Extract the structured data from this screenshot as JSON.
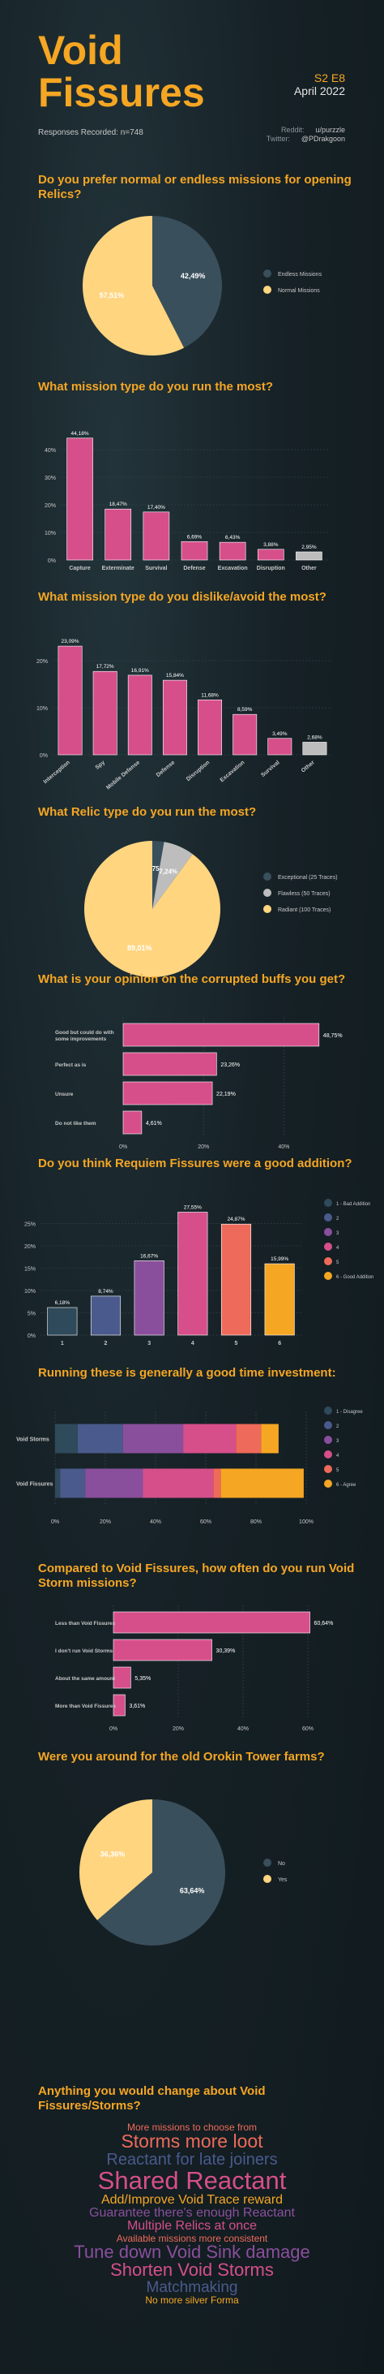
{
  "header": {
    "title_line1": "Void",
    "title_line2": "Fissures",
    "season": "S2 E8",
    "date": "April 2022",
    "responses": "Responses Recorded: n=748",
    "reddit_label": "Reddit:",
    "reddit_value": "u/purzzle",
    "twitter_label": "Twitter:",
    "twitter_value": "@PDrakgoon"
  },
  "colors": {
    "accent": "#f5a623",
    "pink": "#d64f8a",
    "slate": "#3a4f5c",
    "gray": "#bdbdbd",
    "yellow": "#ffd580"
  },
  "chart_data": [
    {
      "id": "pref",
      "type": "pie",
      "title": "Do you prefer normal or endless missions for opening Relics?",
      "slices": [
        {
          "label": "Endless Missions",
          "value": 42.49,
          "text": "42,49%",
          "color": "#3a4f5c"
        },
        {
          "label": "Normal Missions",
          "value": 57.51,
          "text": "57,51%",
          "color": "#ffd580"
        }
      ]
    },
    {
      "id": "most",
      "type": "bar",
      "title": "What mission type do you run the most?",
      "categories": [
        "Capture",
        "Exterminate",
        "Survival",
        "Defense",
        "Excavation",
        "Disruption",
        "Other"
      ],
      "values": [
        44.18,
        18.47,
        17.4,
        6.69,
        6.43,
        3.88,
        2.95
      ],
      "labels": [
        "44,18%",
        "18,47%",
        "17,40%",
        "6,69%",
        "6,43%",
        "3,88%",
        "2,95%"
      ],
      "ylim": [
        0,
        50
      ],
      "yticks": [
        "0%",
        "10%",
        "20%",
        "30%",
        "40%"
      ]
    },
    {
      "id": "dislike",
      "type": "bar",
      "title": "What mission type do you dislike/avoid the most?",
      "categories": [
        "Interception",
        "Spy",
        "Mobile Defense",
        "Defense",
        "Disruption",
        "Excavation",
        "Survival",
        "Other"
      ],
      "values": [
        23.09,
        17.72,
        16.91,
        15.84,
        11.68,
        8.59,
        3.49,
        2.68
      ],
      "labels": [
        "23,09%",
        "17,72%",
        "16,91%",
        "15,84%",
        "11,68%",
        "8,59%",
        "3,49%",
        "2,68%"
      ],
      "ylim": [
        0,
        25
      ],
      "yticks": [
        "0%",
        "10%",
        "20%"
      ]
    },
    {
      "id": "relic",
      "type": "pie",
      "title": "What Relic type do you run the most?",
      "slices": [
        {
          "label": "Exceptional (25 Traces)",
          "value": 2.75,
          "text": "2,75%",
          "color": "#3a4f5c"
        },
        {
          "label": "Flawless (50 Traces)",
          "value": 7.24,
          "text": "7,24%",
          "color": "#bdbdbd"
        },
        {
          "label": "Radiant (100 Traces)",
          "value": 89.01,
          "text": "89,01%",
          "color": "#ffd580"
        }
      ]
    },
    {
      "id": "buffs",
      "type": "bar",
      "orientation": "horizontal",
      "title": "What is your opinion on the corrupted buffs you get?",
      "categories": [
        "Good but could do with some improvements",
        "Perfect as is",
        "Unsure",
        "Do not like them"
      ],
      "values": [
        48.75,
        23.26,
        22.19,
        4.61
      ],
      "labels": [
        "48,75%",
        "23,26%",
        "22,19%",
        "4,61%"
      ],
      "xlim": [
        0,
        50
      ],
      "xticks": [
        "0%",
        "20%",
        "40%"
      ]
    },
    {
      "id": "requiem",
      "type": "bar",
      "title": "Do you think Requiem Fissures were a good addition?",
      "categories": [
        "1",
        "2",
        "3",
        "4",
        "5",
        "6"
      ],
      "values": [
        6.18,
        8.74,
        16.67,
        27.55,
        24.87,
        15.99
      ],
      "labels": [
        "6,18%",
        "8,74%",
        "16,67%",
        "27,55%",
        "24,87%",
        "15,99%"
      ],
      "colors": [
        "#2f4a5a",
        "#4a5a8c",
        "#8a4f9c",
        "#d64f8a",
        "#ee6a5a",
        "#f5a623"
      ],
      "legend": [
        "1 - Bad Addition",
        "2",
        "3",
        "4",
        "5",
        "6 - Good Addition"
      ],
      "ylim": [
        0,
        30
      ],
      "yticks": [
        "0%",
        "5%",
        "10%",
        "15%",
        "20%",
        "25%"
      ]
    },
    {
      "id": "time",
      "type": "bar",
      "stacked": true,
      "orientation": "horizontal",
      "title": "Running these is generally a good time investment:",
      "categories": [
        "Void Storms",
        "Void Fissures"
      ],
      "series": [
        {
          "name": "1 - Disagree",
          "values": [
            9,
            2
          ],
          "color": "#2f4a5a"
        },
        {
          "name": "2",
          "values": [
            18,
            10
          ],
          "color": "#4a5a8c"
        },
        {
          "name": "3",
          "values": [
            24,
            23
          ],
          "color": "#8a4f9c"
        },
        {
          "name": "4",
          "values": [
            21,
            28
          ],
          "color": "#d64f8a"
        },
        {
          "name": "5",
          "values": [
            10,
            3
          ],
          "color": "#ee6a5a"
        },
        {
          "name": "6 - Agree",
          "values": [
            7,
            33
          ],
          "color": "#f5a623"
        }
      ],
      "xlim": [
        0,
        100
      ],
      "xticks": [
        "0%",
        "20%",
        "40%",
        "60%",
        "80%",
        "100%"
      ]
    },
    {
      "id": "storm",
      "type": "bar",
      "orientation": "horizontal",
      "title": "Compared to Void Fissures, how often do you run Void Storm missions?",
      "categories": [
        "Less than Void Fissures",
        "I don't run Void Storms",
        "About the same amount",
        "More than Void Fissures"
      ],
      "values": [
        60.64,
        30.39,
        5.35,
        3.61
      ],
      "labels": [
        "60,64%",
        "30,39%",
        "5,35%",
        "3,61%"
      ],
      "xlim": [
        0,
        62
      ],
      "xticks": [
        "0%",
        "20%",
        "40%",
        "60%"
      ]
    },
    {
      "id": "orokin",
      "type": "pie",
      "title": "Were you around for the old Orokin Tower farms?",
      "slices": [
        {
          "label": "No",
          "value": 63.64,
          "text": "63,64%",
          "color": "#3a4f5c"
        },
        {
          "label": "Yes",
          "value": 36.36,
          "text": "36,36%",
          "color": "#ffd580"
        }
      ]
    }
  ],
  "wordcloud": {
    "title": "Anything you would change about Void Fissures/Storms?",
    "words": [
      {
        "text": "More missions to choose from",
        "size": 12,
        "color": "#ee6a5a"
      },
      {
        "text": "Storms more loot",
        "size": 23,
        "color": "#ee6a5a"
      },
      {
        "text": "Reactant for late joiners",
        "size": 20,
        "color": "#4a5a8c"
      },
      {
        "text": "Shared Reactant",
        "size": 31,
        "color": "#d64f8a"
      },
      {
        "text": "Add/Improve Void Trace reward",
        "size": 16,
        "color": "#f5a623"
      },
      {
        "text": "Guarantee there's enough Reactant",
        "size": 16,
        "color": "#8a4f9c"
      },
      {
        "text": "Multiple Relics at once",
        "size": 16,
        "color": "#d64f8a"
      },
      {
        "text": "Available missions more consistent",
        "size": 12,
        "color": "#ee6a5a"
      },
      {
        "text": "Tune down Void Sink damage",
        "size": 22,
        "color": "#8a4f9c"
      },
      {
        "text": "Shorten Void Storms",
        "size": 22,
        "color": "#d64f8a"
      },
      {
        "text": "Matchmaking",
        "size": 19,
        "color": "#4a5a8c"
      },
      {
        "text": "No more silver Forma",
        "size": 12,
        "color": "#f5a623"
      }
    ]
  }
}
